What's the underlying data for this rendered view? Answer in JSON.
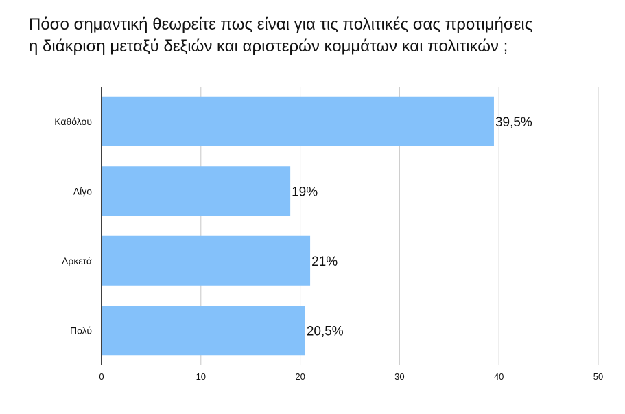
{
  "chart_data": {
    "type": "bar",
    "orientation": "horizontal",
    "title_lines": [
      "Πόσο σημαντική θεωρείτε πως είναι για τις πολιτικές σας προτιμήσεις",
      "η διάκριση μεταξύ δεξιών και αριστερών κομμάτων και πολιτικών ;"
    ],
    "categories": [
      "Καθόλου",
      "Λίγο",
      "Αρκετά",
      "Πολύ"
    ],
    "values": [
      39.5,
      19,
      21,
      20.5
    ],
    "data_labels": [
      "39,5%",
      "19%",
      "21%",
      "20,5%"
    ],
    "xlim": [
      0,
      50
    ],
    "x_ticks": [
      0,
      10,
      20,
      30,
      40,
      50
    ],
    "x_tick_labels": [
      "0",
      "10",
      "20",
      "30",
      "40",
      "50"
    ],
    "grid": "vertical",
    "bar_color": "#84C1FA",
    "grid_color": "#C8C8C8",
    "axis_color": "#000000",
    "text_color": "#111111"
  }
}
